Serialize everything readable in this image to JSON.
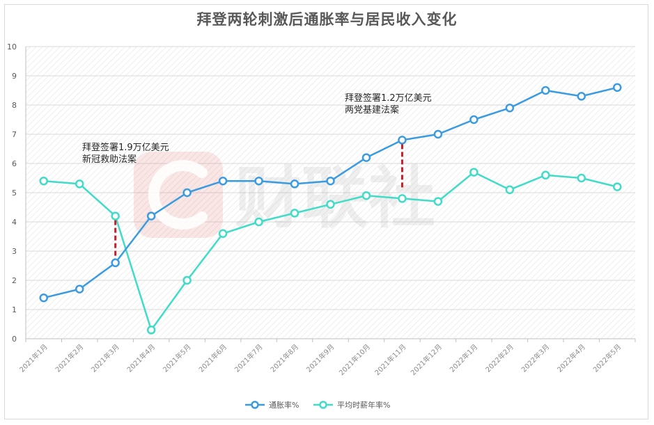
{
  "colors": {
    "inflation": "#3b9be0",
    "income": "#40dcc7",
    "marker": "#c0222c",
    "watermark": "#e23a3a"
  },
  "watermark": "财联社",
  "chart_data": {
    "type": "line",
    "title": "拜登两轮刺激后通胀率与居民收入变化",
    "categories": [
      "2021年1月",
      "2021年2月",
      "2021年3月",
      "2021年4月",
      "2021年5月",
      "2021年6月",
      "2021年7月",
      "2021年8月",
      "2021年9月",
      "2021年10月",
      "2021年11月",
      "2021年12月",
      "2022年1月",
      "2022年2月",
      "2022年3月",
      "2022年4月",
      "2022年5月"
    ],
    "ylim": [
      0,
      10
    ],
    "yticks": [
      "0",
      "1",
      "2",
      "3",
      "4",
      "5",
      "6",
      "7",
      "8",
      "9",
      "10"
    ],
    "grid": true,
    "legend_position": "bottom",
    "series": [
      {
        "name": "通胀率%",
        "color": "#3b9be0",
        "values": [
          1.4,
          1.7,
          2.6,
          4.2,
          5.0,
          5.4,
          5.4,
          5.3,
          5.4,
          6.2,
          6.8,
          7.0,
          7.5,
          7.9,
          8.5,
          8.3,
          8.6
        ]
      },
      {
        "name": "平均时薪年率%",
        "color": "#40dcc7",
        "values": [
          5.4,
          5.3,
          4.2,
          0.3,
          2.0,
          3.6,
          4.0,
          4.3,
          4.6,
          4.9,
          4.8,
          4.7,
          5.7,
          5.1,
          5.6,
          5.5,
          5.2
        ]
      }
    ],
    "annotations": [
      {
        "lines": [
          "拜登签署1.9万亿美元",
          "新冠救助法案"
        ],
        "category_index": 2,
        "y_from": 2.6,
        "y_to": 4.2
      },
      {
        "lines": [
          "拜登签署1.2万亿美元",
          "两党基建法案"
        ],
        "category_index": 10,
        "y_from": 5.0,
        "y_to": 6.8
      }
    ]
  }
}
